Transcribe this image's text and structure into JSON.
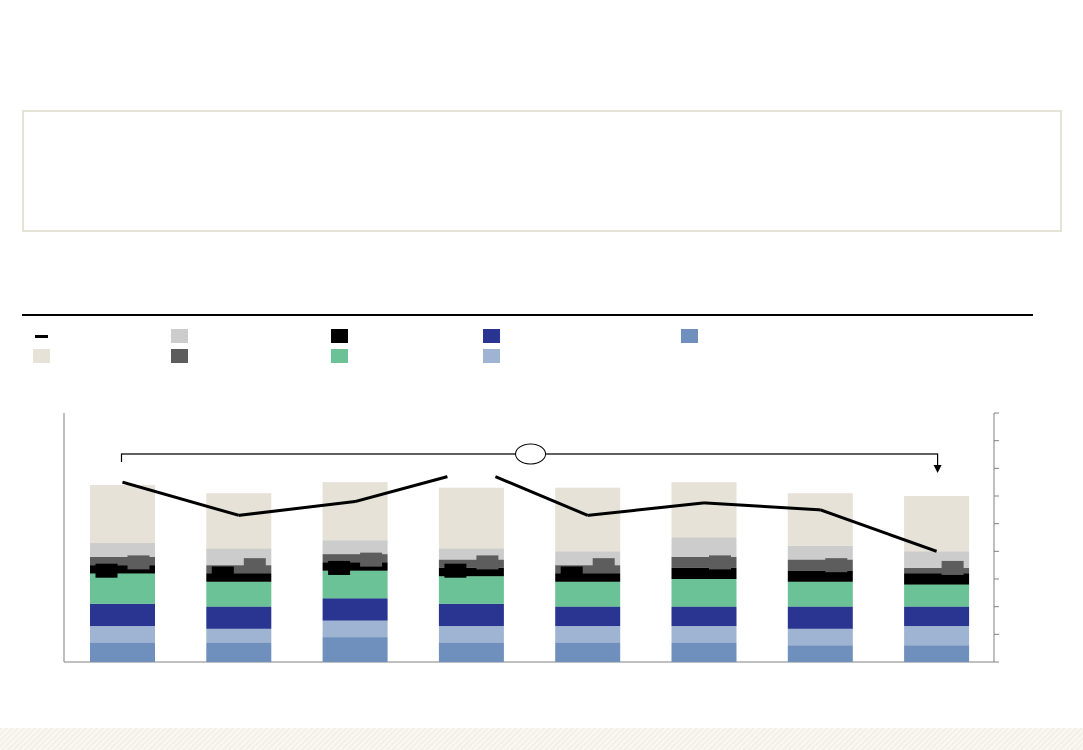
{
  "chart_data": {
    "type": "bar",
    "stacked": true,
    "categories": [
      "",
      "",
      "",
      "",
      "",
      "",
      "",
      ""
    ],
    "series": [
      {
        "key": "s_blue_lt",
        "color": "#6f8fbc",
        "values": [
          7,
          7,
          9,
          7,
          7,
          7,
          6,
          6
        ]
      },
      {
        "key": "s_blue_pl",
        "color": "#9fb3d3",
        "values": [
          6,
          5,
          6,
          6,
          6,
          6,
          6,
          7
        ]
      },
      {
        "key": "s_navy",
        "color": "#2a3491",
        "values": [
          8,
          8,
          8,
          8,
          7,
          7,
          8,
          7
        ]
      },
      {
        "key": "s_green",
        "color": "#6bc296",
        "values": [
          11,
          9,
          10,
          10,
          9,
          10,
          9,
          8
        ]
      },
      {
        "key": "s_black",
        "color": "#000000",
        "values": [
          3,
          3,
          3,
          3,
          3,
          4,
          4,
          4
        ]
      },
      {
        "key": "s_dkgrey",
        "color": "#5d5d5d",
        "values": [
          3,
          3,
          3,
          3,
          3,
          4,
          4,
          2
        ]
      },
      {
        "key": "s_ltgrey",
        "color": "#cccccc",
        "values": [
          5,
          6,
          5,
          4,
          5,
          7,
          5,
          6
        ]
      },
      {
        "key": "s_beige",
        "color": "#e6e2d7",
        "values": [
          21,
          20,
          21,
          22,
          23,
          20,
          19,
          20
        ]
      }
    ],
    "line": {
      "key": "line_black",
      "color": "#000000",
      "values": [
        65,
        53,
        58,
        67,
        53,
        57.5,
        55,
        40
      ]
    },
    "black_markers": [
      33,
      32,
      34,
      33,
      32,
      null,
      null,
      null
    ],
    "grey_markers": [
      36,
      35,
      37,
      36,
      35,
      36,
      35,
      34
    ],
    "legend": [
      {
        "type": "line",
        "color": "#000000",
        "label": ""
      },
      {
        "type": "swatch",
        "color": "#cccccc",
        "label": ""
      },
      {
        "type": "swatch",
        "color": "#000000",
        "label": ""
      },
      {
        "type": "swatch",
        "color": "#2a3491",
        "label": ""
      },
      {
        "type": "swatch",
        "color": "#6f8fbc",
        "label": ""
      },
      {
        "type": "swatch",
        "color": "#e6e2d7",
        "label": ""
      },
      {
        "type": "swatch",
        "color": "#5d5d5d",
        "label": ""
      },
      {
        "type": "swatch",
        "color": "#6bc296",
        "label": ""
      },
      {
        "type": "swatch",
        "color": "#9fb3d3",
        "label": ""
      }
    ],
    "ylim": [
      0,
      90
    ],
    "yticks": [
      0,
      10,
      20,
      30,
      40,
      50,
      60,
      70,
      80,
      90
    ],
    "grid": false,
    "legend_position": "top-left",
    "title": "",
    "xlabel": "",
    "ylabel": ""
  }
}
